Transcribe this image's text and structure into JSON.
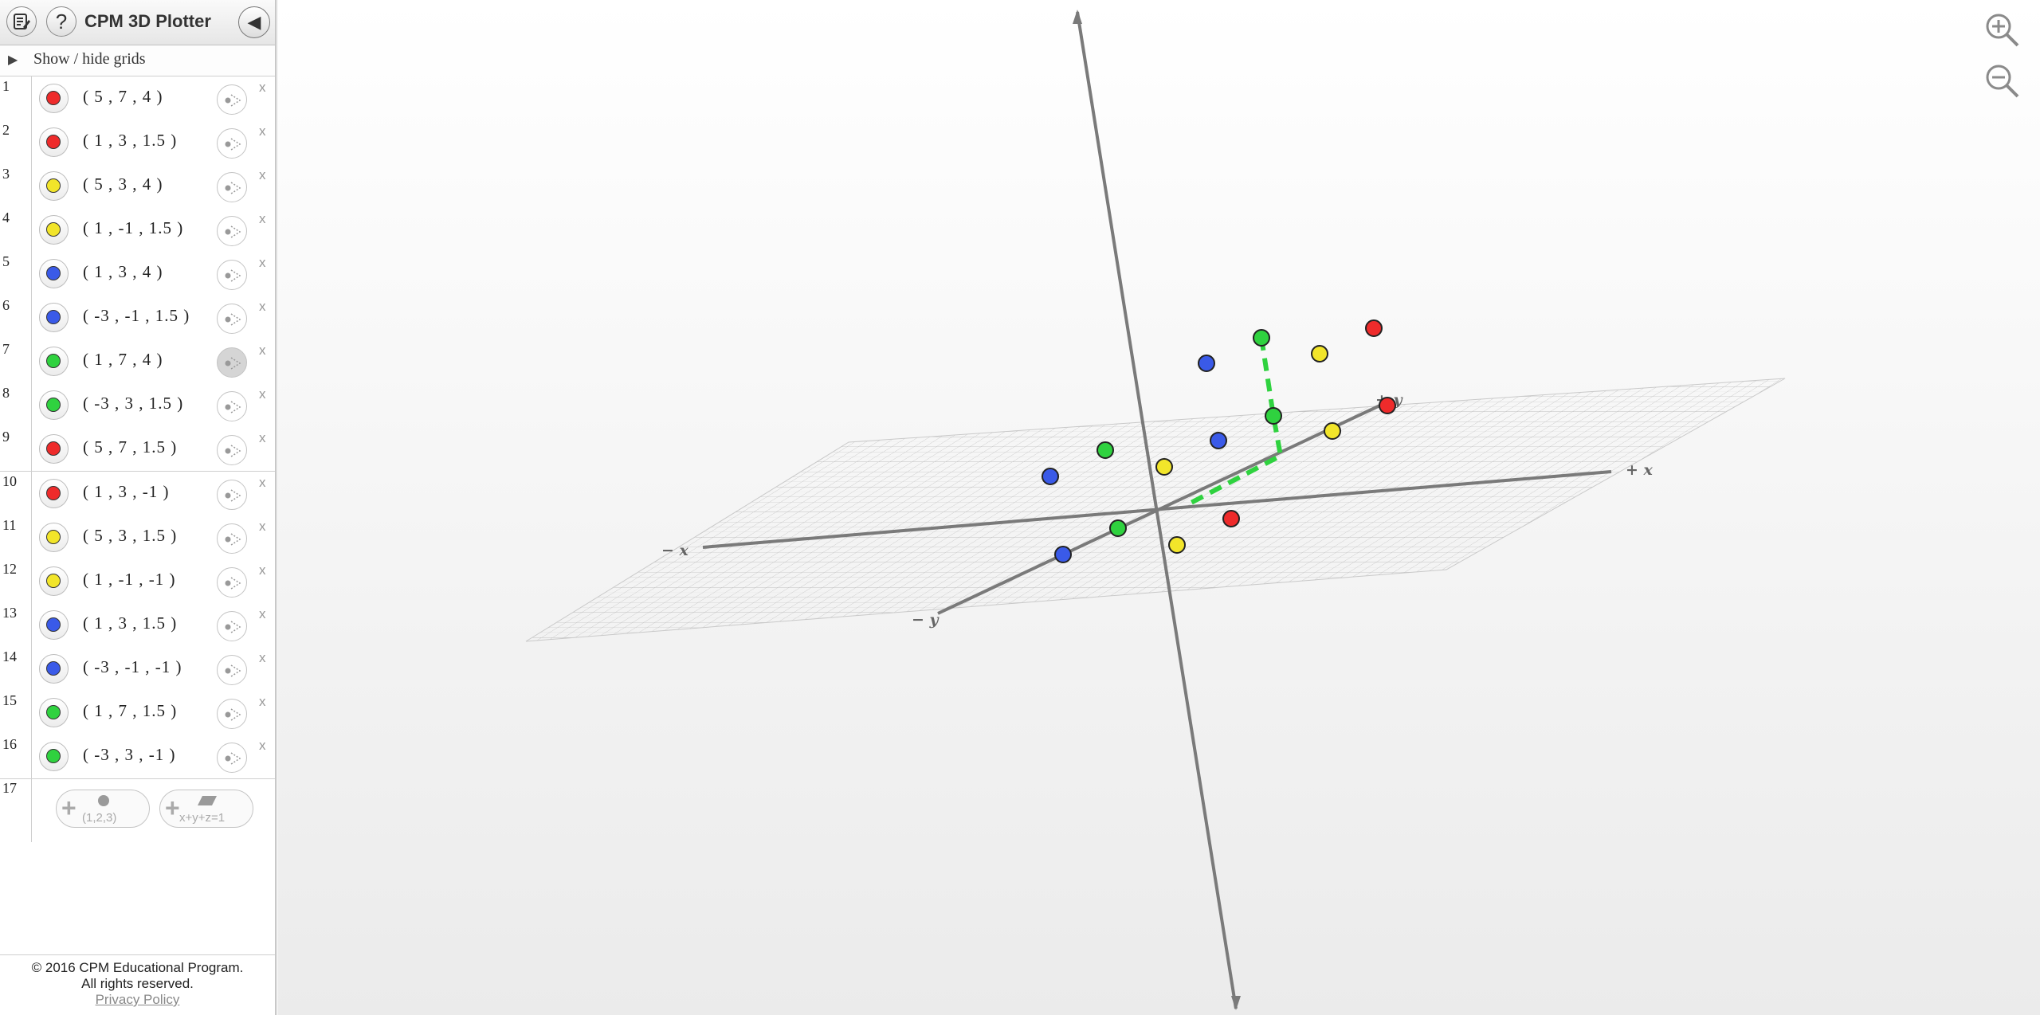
{
  "app": {
    "title": "CPM 3D Plotter",
    "help_label": "?",
    "collapse_glyph": "◀"
  },
  "grids_toggle": {
    "label": "Show / hide grids",
    "glyph": "▶"
  },
  "points": [
    {
      "n": "1",
      "label": "( 5 , 7 , 4 )",
      "color": "#ee2b2b"
    },
    {
      "n": "2",
      "label": "( 1 , 3 , 1.5 )",
      "color": "#ee2b2b"
    },
    {
      "n": "3",
      "label": "( 5 , 3 , 4 )",
      "color": "#f2e52a"
    },
    {
      "n": "4",
      "label": "( 1 , -1 , 1.5 )",
      "color": "#f2e52a"
    },
    {
      "n": "5",
      "label": "( 1 , 3 , 4 )",
      "color": "#3a5ae8"
    },
    {
      "n": "6",
      "label": "( -3 , -1 , 1.5 )",
      "color": "#3a5ae8"
    },
    {
      "n": "7",
      "label": "( 1 , 7 , 4 )",
      "color": "#2fd23f",
      "active": true
    },
    {
      "n": "8",
      "label": "( -3 , 3 , 1.5 )",
      "color": "#2fd23f"
    },
    {
      "n": "9",
      "label": "( 5 , 7 , 1.5 )",
      "color": "#ee2b2b"
    },
    {
      "n": "10",
      "label": "( 1 , 3 , -1 )",
      "color": "#ee2b2b"
    },
    {
      "n": "11",
      "label": "( 5 , 3 , 1.5 )",
      "color": "#f2e52a"
    },
    {
      "n": "12",
      "label": "( 1 , -1 , -1 )",
      "color": "#f2e52a"
    },
    {
      "n": "13",
      "label": "( 1 , 3 , 1.5 )",
      "color": "#3a5ae8"
    },
    {
      "n": "14",
      "label": "( -3 , -1 , -1 )",
      "color": "#3a5ae8"
    },
    {
      "n": "15",
      "label": "( 1 , 7 , 1.5 )",
      "color": "#2fd23f"
    },
    {
      "n": "16",
      "label": "( -3 , 3 , -1 )",
      "color": "#2fd23f"
    }
  ],
  "delete_label": "x",
  "add_row": {
    "n": "17",
    "add_point_caption": "(1,2,3)",
    "add_plane_caption": "x+y+z=1",
    "plus": "+"
  },
  "axes": {
    "pos_x": "+ x",
    "neg_x": "− x",
    "neg_y": "− y",
    "pos_y": "+ y"
  },
  "footer": {
    "copyright": "© 2016 CPM Educational Program.",
    "rights": "All rights reserved.",
    "privacy": "Privacy Policy"
  }
}
